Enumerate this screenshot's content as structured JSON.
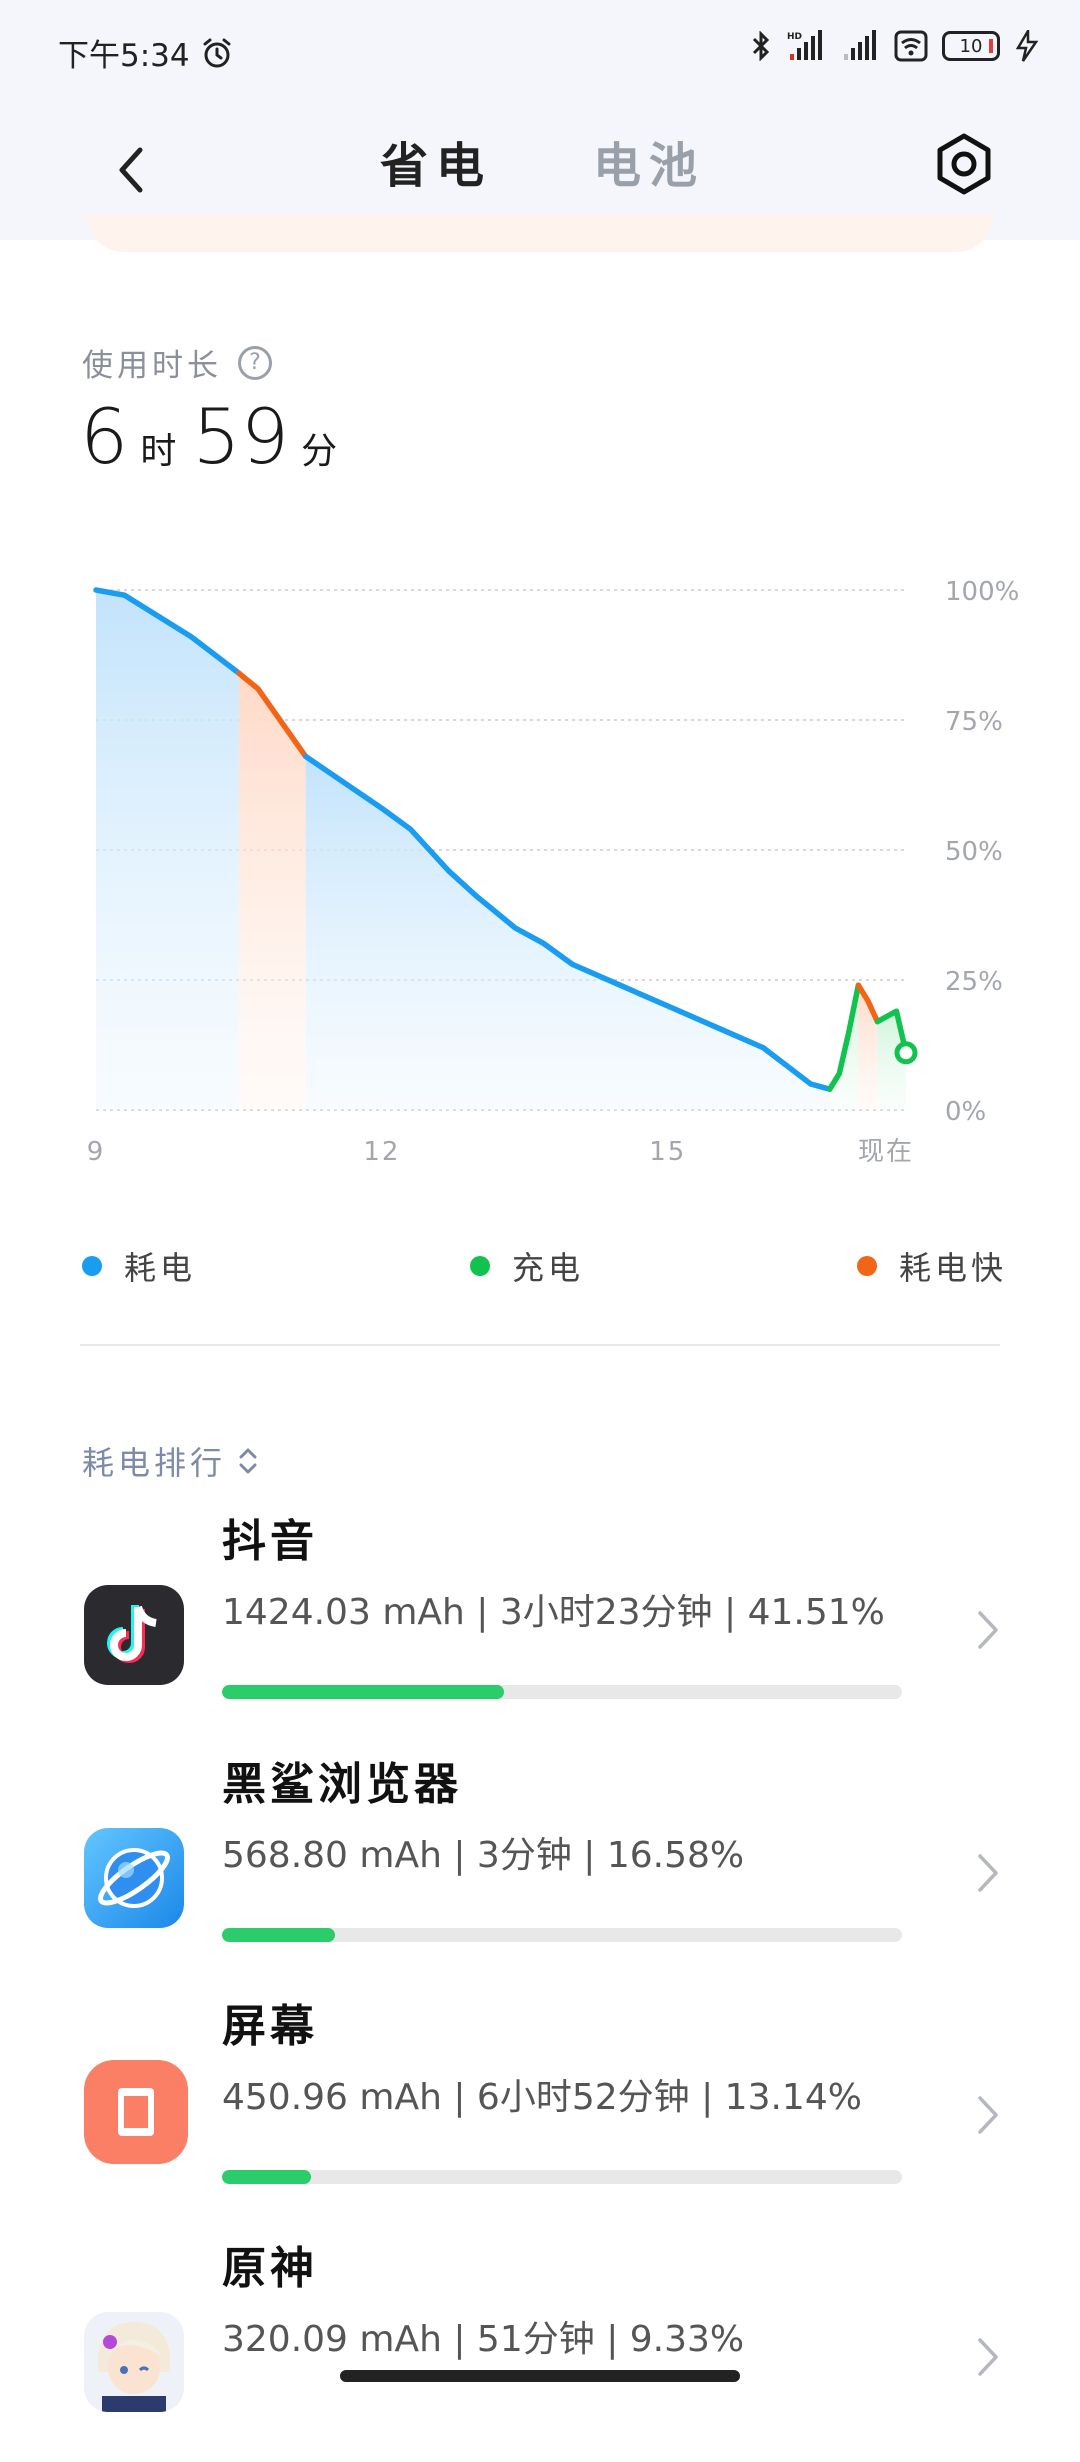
{
  "status_bar": {
    "time": "下午5:34",
    "battery_level": "10"
  },
  "nav": {
    "tab_active": "省电",
    "tab_inactive": "电池"
  },
  "usage": {
    "label": "使用时长",
    "hours": "6",
    "hours_unit": "时",
    "minutes": "59",
    "minutes_unit": "分"
  },
  "chart_data": {
    "type": "line",
    "x": [
      9.0,
      9.3,
      10.0,
      10.5,
      10.7,
      11.2,
      11.6,
      12.0,
      12.3,
      12.7,
      13.0,
      13.4,
      13.7,
      14.0,
      14.5,
      15.0,
      15.5,
      16.0,
      16.5,
      16.7,
      16.8,
      16.9,
      17.0,
      17.1,
      17.2,
      17.4,
      17.5
    ],
    "y": [
      100,
      99,
      91,
      84,
      81,
      68,
      63,
      58,
      54,
      46,
      41,
      35,
      32,
      28,
      24,
      20,
      16,
      12,
      5,
      4,
      7,
      15,
      24,
      21,
      17,
      19,
      11
    ],
    "segments": [
      {
        "kind": "耗电",
        "from": 9.0,
        "to": 10.5
      },
      {
        "kind": "耗电快",
        "from": 10.5,
        "to": 11.2
      },
      {
        "kind": "耗电",
        "from": 11.2,
        "to": 16.7
      },
      {
        "kind": "充电",
        "from": 16.7,
        "to": 17.0
      },
      {
        "kind": "耗电快",
        "from": 17.0,
        "to": 17.2
      },
      {
        "kind": "充电",
        "from": 17.2,
        "to": 17.5
      }
    ],
    "x_ticks": [
      {
        "value": 9,
        "label": "9"
      },
      {
        "value": 12,
        "label": "12"
      },
      {
        "value": 15,
        "label": "15"
      },
      {
        "value": 17.5,
        "label": "现在"
      }
    ],
    "y_ticks": [
      "0%",
      "25%",
      "50%",
      "75%",
      "100%"
    ],
    "ylim": [
      0,
      100
    ],
    "xlim": [
      9,
      17.5
    ],
    "grid": true,
    "colors": {
      "drain": "#1a9cf0",
      "charge": "#12c24e",
      "fast": "#f26416"
    }
  },
  "legend": {
    "drain": "耗电",
    "charge": "充电",
    "fast": "耗电快"
  },
  "ranking": {
    "label": "耗电排行"
  },
  "apps": [
    {
      "name": "抖音",
      "detail": "1424.03 mAh | 3小时23分钟 | 41.51%",
      "percent": 41.51,
      "icon": "douyin-icon"
    },
    {
      "name": "黑鲨浏览器",
      "detail": "568.80 mAh | 3分钟 | 16.58%",
      "percent": 16.58,
      "icon": "browser-icon"
    },
    {
      "name": "屏幕",
      "detail": "450.96 mAh | 6小时52分钟 | 13.14%",
      "percent": 13.14,
      "icon": "screen-icon"
    },
    {
      "name": "原神",
      "detail": "320.09 mAh | 51分钟 | 9.33%",
      "percent": 9.33,
      "icon": "genshin-icon"
    }
  ]
}
